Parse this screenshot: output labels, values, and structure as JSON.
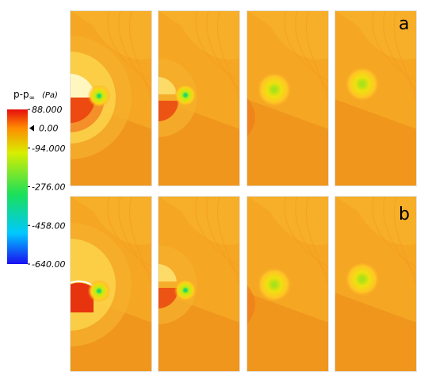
{
  "colorbar": {
    "title_main": "p-p",
    "title_sub": "∞",
    "unit": "(Pa)",
    "ticks": [
      {
        "value": 88.0,
        "label": "88.000"
      },
      {
        "value": 0.0,
        "label": "0.00"
      },
      {
        "value": -94.0,
        "label": "-94.000"
      },
      {
        "value": -276.0,
        "label": "-276.00"
      },
      {
        "value": -458.0,
        "label": "-458.00"
      },
      {
        "value": -640.0,
        "label": "-640.00"
      }
    ],
    "range": [
      -640.0,
      88.0
    ],
    "colors": [
      "#1a0ff0",
      "#00c8ff",
      "#19e05a",
      "#d8ee00",
      "#ff8c00",
      "#e60d0d"
    ]
  },
  "rows": [
    {
      "label": "a",
      "panels": 4
    },
    {
      "label": "b",
      "panels": 4
    }
  ],
  "palette": {
    "background": "#f5a623",
    "wake": "#f0961c",
    "high": "#e8240f",
    "vortex_core": "#3cd26a"
  }
}
